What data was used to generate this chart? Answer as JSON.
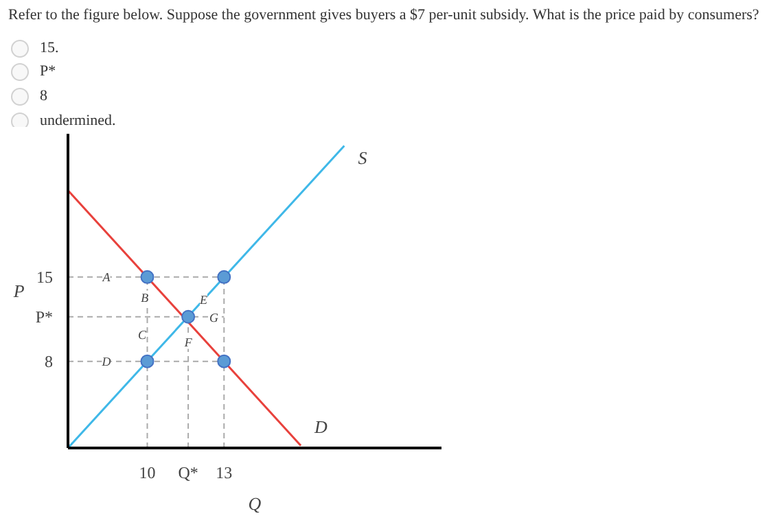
{
  "chart_data": {
    "type": "line",
    "title": "Refer to the figure below. Suppose the government gives buyers a $7 per-unit subsidy. What is the price paid by consumers?",
    "annotations": [
      "15.",
      "P*",
      "8",
      "undermined.",
      {
        "text": "A",
        "x": 8.4,
        "y": 15
      },
      {
        "text": "B",
        "x": 9.9,
        "y": 13.3
      },
      {
        "text": "E",
        "x": 12.2,
        "y": 13.1
      },
      {
        "text": "C",
        "x": 9.8,
        "y": 10.2
      },
      {
        "text": "G",
        "x": 12.6,
        "y": 11.6
      },
      {
        "text": "F",
        "x": 11.6,
        "y": 9.6
      },
      {
        "text": "D",
        "x": 8.4,
        "y": 8
      }
    ],
    "xlabel": "Q",
    "ylabel": "P",
    "xlim": [
      6.9,
      21.5
    ],
    "ylim": [
      0.8,
      26.9
    ],
    "xticks": [
      10,
      {
        "value": 11.6,
        "label": "Q*"
      },
      13
    ],
    "yticks": [
      15,
      {
        "value": 11.7,
        "label": "P*"
      },
      8
    ],
    "series": [
      {
        "name": "S",
        "color": "#3fb8e8",
        "x": [
          6.9,
          17.7
        ],
        "values": [
          0.8,
          25.9
        ]
      },
      {
        "name": "D",
        "color": "#e8413c",
        "x": [
          6.9,
          16.0
        ],
        "values": [
          22.2,
          1.0
        ]
      },
      {
        "color": "#aaaaaa",
        "line_style": "dashed",
        "x": [
          6.9,
          13
        ],
        "values": [
          15,
          15
        ]
      },
      {
        "color": "#aaaaaa",
        "line_style": "dashed",
        "x": [
          6.9,
          13
        ],
        "values": [
          11.7,
          11.7
        ]
      },
      {
        "color": "#aaaaaa",
        "line_style": "dashed",
        "x": [
          6.9,
          13
        ],
        "values": [
          8,
          8
        ]
      },
      {
        "color": "#aaaaaa",
        "line_style": "dashed",
        "x": [
          10,
          10
        ],
        "values": [
          0.8,
          15
        ]
      },
      {
        "color": "#aaaaaa",
        "line_style": "dashed",
        "x": [
          11.6,
          11.6
        ],
        "values": [
          0.8,
          11.7
        ]
      },
      {
        "color": "#aaaaaa",
        "line_style": "dashed",
        "x": [
          13,
          13
        ],
        "values": [
          0.8,
          15
        ]
      },
      {
        "type": "scatter",
        "marker": "circle",
        "color": "#5b9bd5",
        "x": [
          10,
          13,
          11.6,
          10,
          13
        ],
        "values": [
          15,
          15,
          11.7,
          8,
          8
        ]
      }
    ]
  }
}
